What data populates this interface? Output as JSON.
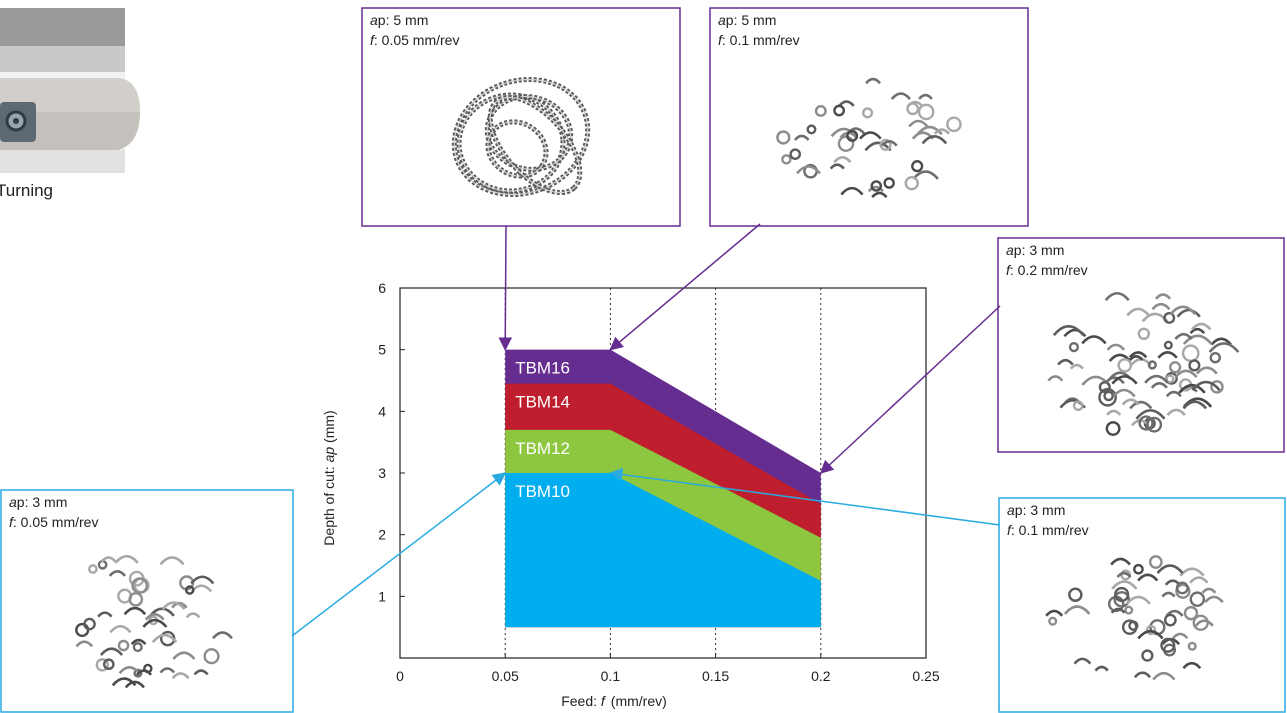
{
  "colors": {
    "tbm16": "#662d91",
    "tbm14": "#be1e2d",
    "tbm12": "#8dc63f",
    "tbm10": "#00aeef",
    "purple_callout": "#662d91",
    "blue_callout": "#29abe2"
  },
  "tool": {
    "caption": "Turning"
  },
  "chart_data": {
    "type": "area",
    "xlabel_prefix": "Feed: ",
    "xlabel_var": "f",
    "xlabel_units": "(mm/rev)",
    "ylabel_prefix": "Depth of cut: ",
    "ylabel_var": "ap",
    "ylabel_units": " (mm)",
    "xlim": [
      0,
      0.25
    ],
    "ylim": [
      0,
      6
    ],
    "x_ticks": [
      "0",
      "0.05",
      "0.1",
      "0.15",
      "0.2",
      "0.25"
    ],
    "y_ticks": [
      "1",
      "2",
      "3",
      "4",
      "5",
      "6"
    ],
    "grid": "vertical dotted at x=0.05, 0.1, 0.15, 0.2",
    "floor_ap": 0.5,
    "series": [
      {
        "name": "TBM16",
        "color_key": "tbm16",
        "x": [
          0.05,
          0.1,
          0.2
        ],
        "y": [
          5.0,
          5.0,
          3.0
        ]
      },
      {
        "name": "TBM14",
        "color_key": "tbm14",
        "x": [
          0.05,
          0.1,
          0.2
        ],
        "y": [
          4.45,
          4.45,
          2.5
        ]
      },
      {
        "name": "TBM12",
        "color_key": "tbm12",
        "x": [
          0.05,
          0.1,
          0.2
        ],
        "y": [
          3.7,
          3.7,
          1.95
        ]
      },
      {
        "name": "TBM10",
        "color_key": "tbm10",
        "x": [
          0.05,
          0.1,
          0.2
        ],
        "y": [
          3.0,
          3.0,
          1.25
        ]
      }
    ],
    "annotations": [
      {
        "id": "c1",
        "color": "purple",
        "ap": "5 mm",
        "f": "0.05 mm/rev",
        "chip": "long-coil",
        "point": [
          0.05,
          5.0
        ]
      },
      {
        "id": "c2",
        "color": "purple",
        "ap": "5 mm",
        "f": "0.1 mm/rev",
        "chip": "short",
        "point": [
          0.1,
          5.0
        ]
      },
      {
        "id": "c3",
        "color": "purple",
        "ap": "3 mm",
        "f": "0.2 mm/rev",
        "chip": "dense",
        "point": [
          0.2,
          3.0
        ]
      },
      {
        "id": "c4",
        "color": "blue",
        "ap": "3 mm",
        "f": "0.05 mm/rev",
        "chip": "scattered",
        "point": [
          0.05,
          3.0
        ]
      },
      {
        "id": "c5",
        "color": "blue",
        "ap": "3 mm",
        "f": "0.1 mm/rev",
        "chip": "scattered",
        "point": [
          0.1,
          3.0
        ]
      }
    ]
  }
}
